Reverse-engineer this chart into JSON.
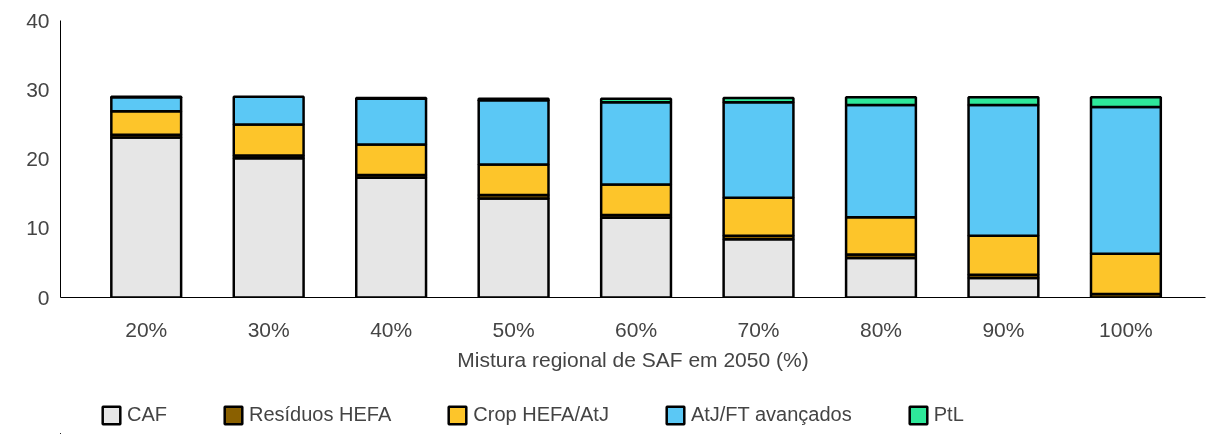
{
  "chart_data": {
    "type": "bar",
    "stacked": true,
    "xlabel": "Mistura regional de SAF em 2050 (%)",
    "categories": [
      "20%",
      "30%",
      "40%",
      "50%",
      "60%",
      "70%",
      "80%",
      "90%",
      "100%"
    ],
    "series": [
      {
        "name": "CAF",
        "color": "#e6e6e6",
        "values": [
          23.1,
          20.1,
          17.3,
          14.3,
          11.5,
          8.4,
          5.7,
          2.8,
          0
        ]
      },
      {
        "name": "Resíduos HEFA",
        "color": "#8a6000",
        "values": [
          0.4,
          0.4,
          0.4,
          0.5,
          0.4,
          0.5,
          0.5,
          0.5,
          0.5
        ]
      },
      {
        "name": "Crop HEFA/AtJ",
        "color": "#fdc52a",
        "values": [
          3.4,
          4.5,
          4.4,
          4.4,
          4.4,
          5.5,
          5.4,
          5.6,
          5.8
        ]
      },
      {
        "name": "AtJ/FT avançados",
        "color": "#5bc8f5",
        "values": [
          2.0,
          4.0,
          6.6,
          9.3,
          11.9,
          13.8,
          16.2,
          18.9,
          21.2
        ]
      },
      {
        "name": "PtL",
        "color": "#2ee89a",
        "values": [
          0.1,
          null,
          0.1,
          0.2,
          0.5,
          0.6,
          1.1,
          1.1,
          1.4
        ]
      }
    ],
    "ylim": [
      0,
      40
    ],
    "yticks": [
      0,
      10,
      20,
      30,
      40
    ],
    "grid": false,
    "legend": "bottom"
  }
}
